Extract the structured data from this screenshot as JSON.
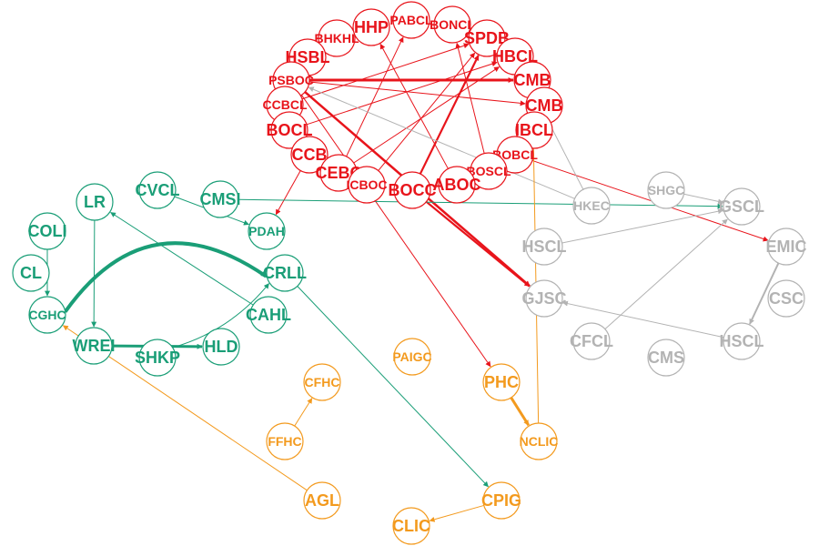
{
  "colors": {
    "red": "#e8141b",
    "green": "#1a9e77",
    "gray": "#b3b3b3",
    "orange": "#f39a1e"
  },
  "nodes": [
    {
      "id": "HHP",
      "label": "HHP",
      "group": "red"
    },
    {
      "id": "PABCL",
      "label": "PABCL",
      "group": "red"
    },
    {
      "id": "BONCL",
      "label": "BONCL",
      "group": "red"
    },
    {
      "id": "BHKHL",
      "label": "BHKHL",
      "group": "red"
    },
    {
      "id": "SPDB",
      "label": "SPDB",
      "group": "red"
    },
    {
      "id": "HSBL",
      "label": "HSBL",
      "group": "red"
    },
    {
      "id": "HBCL",
      "label": "HBCL",
      "group": "red"
    },
    {
      "id": "PSBOC",
      "label": "PSBOC",
      "group": "red"
    },
    {
      "id": "CMB1",
      "label": "CMB",
      "group": "red"
    },
    {
      "id": "CMB2",
      "label": "CMB",
      "group": "red"
    },
    {
      "id": "CCBCL",
      "label": "CCBCL",
      "group": "red"
    },
    {
      "id": "IBCL",
      "label": "IBCL",
      "group": "red"
    },
    {
      "id": "BOCL",
      "label": "BOCL",
      "group": "red"
    },
    {
      "id": "BOBCL",
      "label": "BOBCL",
      "group": "red"
    },
    {
      "id": "CCB",
      "label": "CCB",
      "group": "red"
    },
    {
      "id": "CEBC",
      "label": "CEBC",
      "group": "red"
    },
    {
      "id": "BOSCL",
      "label": "BOSCL",
      "group": "red"
    },
    {
      "id": "ICBOC",
      "label": "ICBOC",
      "group": "red"
    },
    {
      "id": "BOCC",
      "label": "BOCC",
      "group": "red"
    },
    {
      "id": "ABOC",
      "label": "ABOC",
      "group": "red"
    },
    {
      "id": "CVCL",
      "label": "CVCL",
      "group": "green"
    },
    {
      "id": "CMSI",
      "label": "CMSI",
      "group": "green"
    },
    {
      "id": "LR",
      "label": "LR",
      "group": "green"
    },
    {
      "id": "PDAH",
      "label": "PDAH",
      "group": "green"
    },
    {
      "id": "COLI",
      "label": "COLI",
      "group": "green"
    },
    {
      "id": "CL",
      "label": "CL",
      "group": "green"
    },
    {
      "id": "CRLL",
      "label": "CRLL",
      "group": "green"
    },
    {
      "id": "CGHC",
      "label": "CGHC",
      "group": "green"
    },
    {
      "id": "CAHL",
      "label": "CAHL",
      "group": "green"
    },
    {
      "id": "WREI",
      "label": "WREI",
      "group": "green"
    },
    {
      "id": "HLD",
      "label": "HLD",
      "group": "green"
    },
    {
      "id": "SHKP",
      "label": "SHKP",
      "group": "green"
    },
    {
      "id": "HKEC",
      "label": "HKEC",
      "group": "gray"
    },
    {
      "id": "SHGC",
      "label": "SHGC",
      "group": "gray"
    },
    {
      "id": "GSCL",
      "label": "GSCL",
      "group": "gray"
    },
    {
      "id": "HSCL1",
      "label": "HSCL",
      "group": "gray"
    },
    {
      "id": "EMIC",
      "label": "EMIC",
      "group": "gray"
    },
    {
      "id": "GJSC",
      "label": "GJSC",
      "group": "gray"
    },
    {
      "id": "CSC",
      "label": "CSC",
      "group": "gray"
    },
    {
      "id": "CFCL",
      "label": "CFCL",
      "group": "gray"
    },
    {
      "id": "HSCL2",
      "label": "HSCL",
      "group": "gray"
    },
    {
      "id": "CMS",
      "label": "CMS",
      "group": "gray"
    },
    {
      "id": "PAIGC",
      "label": "PAIGC",
      "group": "orange"
    },
    {
      "id": "PHC",
      "label": "PHC",
      "group": "orange"
    },
    {
      "id": "CFHC",
      "label": "CFHC",
      "group": "orange"
    },
    {
      "id": "FFHC",
      "label": "FFHC",
      "group": "orange"
    },
    {
      "id": "NCLIC",
      "label": "NCLIC",
      "group": "orange"
    },
    {
      "id": "AGL",
      "label": "AGL",
      "group": "orange"
    },
    {
      "id": "CPIG",
      "label": "CPIG",
      "group": "orange"
    },
    {
      "id": "CLIC",
      "label": "CLIC",
      "group": "orange"
    }
  ],
  "edges": [
    {
      "from": "PSBOC",
      "to": "CMB1",
      "group": "red",
      "weight": 3
    },
    {
      "from": "PSBOC",
      "to": "GJSC",
      "group": "red",
      "weight": 2.5
    },
    {
      "from": "BOCC",
      "to": "SPDB",
      "group": "red",
      "weight": 2.2
    },
    {
      "from": "BOCC",
      "to": "GJSC",
      "group": "red",
      "weight": 2.2
    },
    {
      "from": "CEBC",
      "to": "PABCL",
      "group": "red",
      "weight": 1
    },
    {
      "from": "CEBC",
      "to": "HBCL",
      "group": "red",
      "weight": 1
    },
    {
      "from": "ICBOC",
      "to": "SPDB",
      "group": "red",
      "weight": 1
    },
    {
      "from": "BOCL",
      "to": "HBCL",
      "group": "red",
      "weight": 1
    },
    {
      "from": "PSBOC",
      "to": "PHC",
      "group": "red",
      "weight": 1
    },
    {
      "from": "CCB",
      "to": "PDAH",
      "group": "red",
      "weight": 1
    },
    {
      "from": "BOBCL",
      "to": "EMIC",
      "group": "red",
      "weight": 1
    },
    {
      "from": "BOSCL",
      "to": "BONCL",
      "group": "red",
      "weight": 1
    },
    {
      "from": "ABOC",
      "to": "HHP",
      "group": "red",
      "weight": 1
    },
    {
      "from": "PSBOC",
      "to": "CMB2",
      "group": "red",
      "weight": 1
    },
    {
      "from": "CCBCL",
      "to": "SPDB",
      "group": "red",
      "weight": 1
    },
    {
      "from": "COLI",
      "to": "CGHC",
      "group": "green",
      "weight": 1
    },
    {
      "from": "CGHC",
      "to": "CRLL",
      "group": "green",
      "weight": 4,
      "curve": -110
    },
    {
      "from": "CAHL",
      "to": "LR",
      "group": "green",
      "weight": 1
    },
    {
      "from": "LR",
      "to": "WREI",
      "group": "green",
      "weight": 1
    },
    {
      "from": "WREI",
      "to": "HLD",
      "group": "green",
      "weight": 3
    },
    {
      "from": "SHKP",
      "to": "CRLL",
      "group": "green",
      "weight": 1,
      "curve": 20
    },
    {
      "from": "CVCL",
      "to": "PDAH",
      "group": "green",
      "weight": 1
    },
    {
      "from": "CMSI",
      "to": "GSCL",
      "group": "green",
      "weight": 1
    },
    {
      "from": "CRLL",
      "to": "CPIG",
      "group": "green",
      "weight": 1
    },
    {
      "from": "HKEC",
      "to": "PSBOC",
      "group": "gray",
      "weight": 1
    },
    {
      "from": "HKEC",
      "to": "HBCL",
      "group": "gray",
      "weight": 1
    },
    {
      "from": "HSCL1",
      "to": "GSCL",
      "group": "gray",
      "weight": 1
    },
    {
      "from": "CFCL",
      "to": "GSCL",
      "group": "gray",
      "weight": 1
    },
    {
      "from": "EMIC",
      "to": "HSCL2",
      "group": "gray",
      "weight": 2
    },
    {
      "from": "HSCL2",
      "to": "GJSC",
      "group": "gray",
      "weight": 1
    },
    {
      "from": "SHGC",
      "to": "GSCL",
      "group": "gray",
      "weight": 1
    },
    {
      "from": "PHC",
      "to": "NCLIC",
      "group": "orange",
      "weight": 3
    },
    {
      "from": "FFHC",
      "to": "CFHC",
      "group": "orange",
      "weight": 1
    },
    {
      "from": "AGL",
      "to": "CGHC",
      "group": "orange",
      "weight": 1
    },
    {
      "from": "CPIG",
      "to": "CLIC",
      "group": "orange",
      "weight": 1
    },
    {
      "from": "NCLIC",
      "to": "CMB1",
      "group": "orange",
      "weight": 1
    }
  ]
}
